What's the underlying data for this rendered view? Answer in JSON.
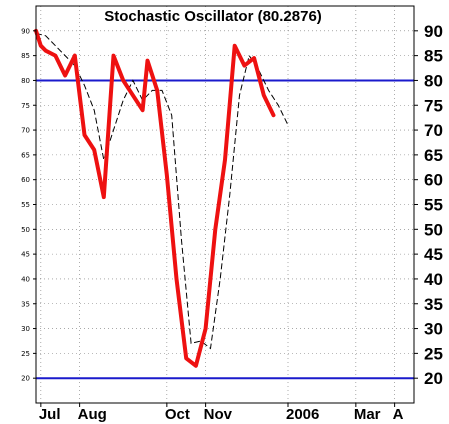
{
  "chart_data": {
    "type": "line",
    "title": "Stochastic Oscillator (80.2876)",
    "xlabel": "",
    "ylabel": "",
    "ylim": [
      15,
      95
    ],
    "y_ticks": [
      20,
      25,
      30,
      35,
      40,
      45,
      50,
      55,
      60,
      65,
      70,
      75,
      80,
      85,
      90
    ],
    "x_labels": [
      {
        "label": "Jul",
        "pos": 1
      },
      {
        "label": "Aug",
        "pos": 9
      },
      {
        "label": "Oct",
        "pos": 27
      },
      {
        "label": "Nov",
        "pos": 35
      },
      {
        "label": "2006",
        "pos": 52
      },
      {
        "label": "Mar",
        "pos": 66
      },
      {
        "label": "A",
        "pos": 74
      }
    ],
    "x_range": [
      0,
      78
    ],
    "grid": true,
    "reference_lines": [
      80,
      20
    ],
    "colors": {
      "percent_k": "#ee1111",
      "percent_d": "#000000",
      "reference": "#1a1acc",
      "grid": "#777777"
    },
    "series": [
      {
        "style": "solid",
        "x": [
          0,
          1,
          2,
          4,
          6,
          8,
          10,
          12,
          14,
          16,
          18,
          20,
          22,
          23,
          25,
          27,
          29,
          31,
          33,
          35,
          37,
          39,
          41,
          43,
          45,
          47,
          49
        ],
        "values": [
          90,
          87,
          86,
          85,
          81,
          85,
          69,
          66,
          56.5,
          85,
          80,
          77,
          74,
          84,
          78,
          61,
          40,
          24,
          22.5,
          30,
          50,
          64,
          87,
          83,
          84.5,
          77,
          73
        ]
      },
      {
        "style": "dashed",
        "x": [
          0,
          2,
          4,
          6,
          8,
          10,
          12,
          14,
          16,
          18,
          20,
          22,
          24,
          26,
          28,
          30,
          32,
          34,
          36,
          38,
          40,
          42,
          44,
          46,
          48,
          50,
          52
        ],
        "values": [
          89.5,
          89,
          87,
          85,
          83,
          79,
          74,
          64,
          70,
          76,
          80,
          76,
          78,
          78,
          73,
          48,
          27,
          27.5,
          26,
          40,
          57,
          77,
          85,
          82,
          78,
          75,
          71
        ]
      }
    ]
  }
}
